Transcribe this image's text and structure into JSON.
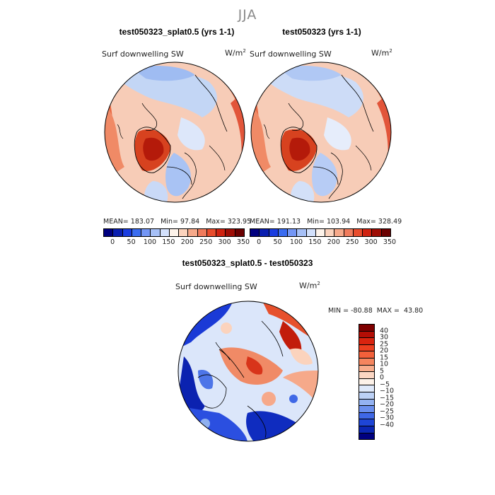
{
  "season": "JJA",
  "top_panels": [
    {
      "title": "test050323_splat0.5 (yrs 1-1)",
      "variable": "Surf downwelling SW",
      "units_base": "W/m",
      "units_exp": "2",
      "mean_label": "MEAN=",
      "mean": "183.07",
      "min_label": "Min=",
      "min": "97.84",
      "max_label": "Max=",
      "max": "323.95"
    },
    {
      "title": "test050323 (yrs 1-1)",
      "variable": "Surf downwelling SW",
      "units_base": "W/m",
      "units_exp": "2",
      "mean_label": "MEAN=",
      "mean": "191.13",
      "min_label": "Min=",
      "min": "103.94",
      "max_label": "Max=",
      "max": "328.49"
    }
  ],
  "abs_colorbar": {
    "tick_labels": [
      "0",
      "50",
      "100",
      "150",
      "200",
      "250",
      "300",
      "350"
    ],
    "colors": [
      "#00007f",
      "#0a1fb0",
      "#1a3de0",
      "#3a6cf0",
      "#7396f5",
      "#a6c0f7",
      "#d2e0fb",
      "#fdf3ea",
      "#fbd3bd",
      "#f6a98a",
      "#f07b5c",
      "#e84c2c",
      "#cf2210",
      "#9e0d05",
      "#6a0000"
    ]
  },
  "diff_panel": {
    "title": "test050323_splat0.5 - test050323",
    "variable": "Surf downwelling SW",
    "units_base": "W/m",
    "units_exp": "2",
    "min_label": "MIN =",
    "min": "-80.88",
    "max_label": "MAX =",
    "max": "43.80"
  },
  "diff_colorbar": {
    "tick_labels": [
      "40",
      "30",
      "25",
      "20",
      "15",
      "10",
      "5",
      "0",
      "−5",
      "−10",
      "−15",
      "−20",
      "−25",
      "−30",
      "−40"
    ],
    "colors": [
      "#7f0000",
      "#b30e05",
      "#d9240f",
      "#ec3f1f",
      "#f2603a",
      "#f5855e",
      "#f8ad8c",
      "#fbd6c3",
      "#fdf2e9",
      "#dfe9fa",
      "#bcd1f6",
      "#93b2f2",
      "#6a8fee",
      "#3f68e6",
      "#1e45d6",
      "#0b26b3",
      "#00007f"
    ]
  }
}
